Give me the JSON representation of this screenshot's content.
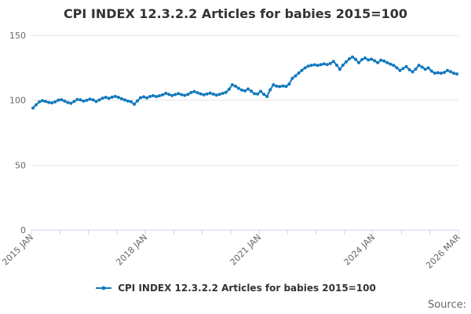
{
  "title": "CPI INDEX 12.3.2.2 Articles for babies 2015=100",
  "legend": {
    "label": "CPI INDEX 12.3.2.2 Articles for babies 2015=100"
  },
  "source_label": "Source:",
  "colors": {
    "line": "#1179bd",
    "grid": "#e6e6e6",
    "axis": "#ccd6eb",
    "tick_label": "#666666",
    "title_text": "#333333"
  },
  "chart_data": {
    "type": "line",
    "title": "CPI INDEX 12.3.2.2 Articles for babies 2015=100",
    "xlabel": "",
    "ylabel": "",
    "ylim": [
      0,
      150
    ],
    "yticks": [
      0,
      50,
      100,
      150
    ],
    "grid": "horizontal",
    "legend_position": "bottom-center",
    "xticks": {
      "labels": [
        "2015 JAN",
        "2018 JAN",
        "2021 JAN",
        "2024 JAN",
        "2026 MAR"
      ],
      "month_indices": [
        0,
        36,
        72,
        108,
        134
      ],
      "minor_tick_every_months": 9,
      "rotation_degrees": -45
    },
    "series": [
      {
        "name": "CPI INDEX 12.3.2.2 Articles for babies 2015=100",
        "start": "2015 JAN",
        "end": "2026 MAR",
        "interval": "monthly",
        "values": [
          94.0,
          96.5,
          98.8,
          99.6,
          99.0,
          98.3,
          98.0,
          98.7,
          100.1,
          100.4,
          99.3,
          98.2,
          97.6,
          99.0,
          100.6,
          100.2,
          99.4,
          100.0,
          100.8,
          100.2,
          99.1,
          100.3,
          101.6,
          102.2,
          101.5,
          102.4,
          103.0,
          102.2,
          101.1,
          100.2,
          99.4,
          98.9,
          96.9,
          99.5,
          101.9,
          102.6,
          101.8,
          102.9,
          103.5,
          102.8,
          103.4,
          104.2,
          105.3,
          104.5,
          103.6,
          104.4,
          105.1,
          104.3,
          103.7,
          104.6,
          105.9,
          106.7,
          105.8,
          104.9,
          104.2,
          104.8,
          105.5,
          104.7,
          104.0,
          104.6,
          105.3,
          106.1,
          108.5,
          111.9,
          110.8,
          109.2,
          107.8,
          107.2,
          108.6,
          107.0,
          105.0,
          104.8,
          106.8,
          104.5,
          102.8,
          108.0,
          111.9,
          110.8,
          110.5,
          111.0,
          110.6,
          112.5,
          116.9,
          118.8,
          120.9,
          123.0,
          124.9,
          126.3,
          126.9,
          127.3,
          126.8,
          127.4,
          128.0,
          127.5,
          128.3,
          129.9,
          127.0,
          123.9,
          127.0,
          129.5,
          131.9,
          133.3,
          131.5,
          128.9,
          131.3,
          132.5,
          131.0,
          131.6,
          130.4,
          128.9,
          130.9,
          130.2,
          128.9,
          127.8,
          126.9,
          125.0,
          122.9,
          124.5,
          125.9,
          123.5,
          121.9,
          124.0,
          126.9,
          125.5,
          123.9,
          124.9,
          122.5,
          120.9,
          121.2,
          120.8,
          121.4,
          122.9,
          122.0,
          120.8,
          120.2
        ]
      }
    ]
  }
}
